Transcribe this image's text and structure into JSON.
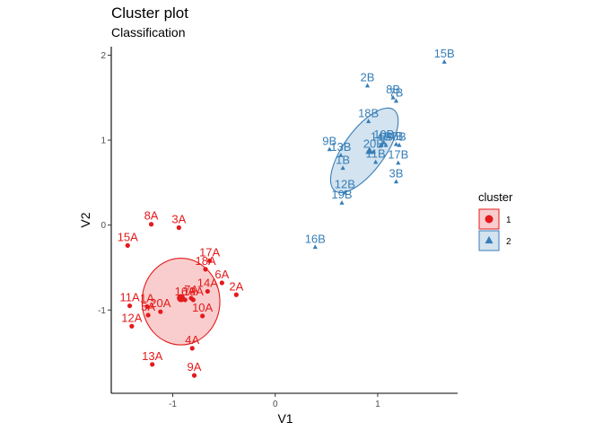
{
  "chart_data": {
    "type": "scatter",
    "title": "Cluster plot",
    "subtitle": "Classification",
    "xlabel": "V1",
    "ylabel": "V2",
    "xlim": [
      -1.6,
      1.78
    ],
    "ylim": [
      -1.98,
      2.1
    ],
    "x_ticks": [
      -1,
      0,
      1
    ],
    "y_ticks": [
      -1,
      0,
      1,
      2
    ],
    "grid": false,
    "legend": {
      "title": "cluster",
      "position": "right"
    },
    "series": [
      {
        "name": "1",
        "color": "#e41a1c",
        "marker": "circle",
        "ellipse": {
          "cx": -0.92,
          "cy": -0.9,
          "rx": 0.38,
          "ry": 0.51,
          "rotation_deg": 0
        },
        "centroid": [
          -0.92,
          -0.86
        ],
        "points": [
          {
            "label": "1A",
            "x": -1.25,
            "y": -0.96
          },
          {
            "label": "2A",
            "x": -0.38,
            "y": -0.82
          },
          {
            "label": "3A",
            "x": -0.94,
            "y": -0.03
          },
          {
            "label": "4A",
            "x": -0.81,
            "y": -1.45
          },
          {
            "label": "5A",
            "x": -1.24,
            "y": -1.06
          },
          {
            "label": "6A",
            "x": -0.52,
            "y": -0.68
          },
          {
            "label": "7A",
            "x": -0.82,
            "y": -0.86
          },
          {
            "label": "8A",
            "x": -1.21,
            "y": 0.01
          },
          {
            "label": "9A",
            "x": -0.79,
            "y": -1.77
          },
          {
            "label": "10A",
            "x": -0.71,
            "y": -1.07
          },
          {
            "label": "11A",
            "x": -1.42,
            "y": -0.95
          },
          {
            "label": "12A",
            "x": -1.4,
            "y": -1.19
          },
          {
            "label": "13A",
            "x": -1.2,
            "y": -1.64
          },
          {
            "label": "14A",
            "x": -0.66,
            "y": -0.78
          },
          {
            "label": "15A",
            "x": -1.44,
            "y": -0.24
          },
          {
            "label": "16A",
            "x": -0.88,
            "y": -0.88
          },
          {
            "label": "17A",
            "x": -0.64,
            "y": -0.42
          },
          {
            "label": "18A",
            "x": -0.68,
            "y": -0.52
          },
          {
            "label": "19A",
            "x": -0.8,
            "y": -0.88
          },
          {
            "label": "20A",
            "x": -1.12,
            "y": -1.02
          }
        ]
      },
      {
        "name": "2",
        "color": "#377eb8",
        "marker": "triangle",
        "ellipse": {
          "cx": 0.87,
          "cy": 0.88,
          "rx": 0.2,
          "ry": 0.59,
          "rotation_deg": 36
        },
        "centroid": [
          0.92,
          0.87
        ],
        "points": [
          {
            "label": "1B",
            "x": 0.66,
            "y": 0.67
          },
          {
            "label": "2B",
            "x": 0.9,
            "y": 1.64
          },
          {
            "label": "3B",
            "x": 1.18,
            "y": 0.51
          },
          {
            "label": "4B",
            "x": 1.18,
            "y": 0.95
          },
          {
            "label": "5B",
            "x": 1.21,
            "y": 0.94
          },
          {
            "label": "6B",
            "x": 1.08,
            "y": 0.94
          },
          {
            "label": "7B",
            "x": 1.18,
            "y": 1.46
          },
          {
            "label": "8B",
            "x": 1.15,
            "y": 1.5
          },
          {
            "label": "9B",
            "x": 0.53,
            "y": 0.89
          },
          {
            "label": "10B",
            "x": 1.06,
            "y": 0.97
          },
          {
            "label": "11B",
            "x": 0.98,
            "y": 0.74
          },
          {
            "label": "12B",
            "x": 0.68,
            "y": 0.38
          },
          {
            "label": "13B",
            "x": 0.64,
            "y": 0.82
          },
          {
            "label": "14B",
            "x": 1.03,
            "y": 0.94
          },
          {
            "label": "15B",
            "x": 1.65,
            "y": 1.92
          },
          {
            "label": "16B",
            "x": 0.39,
            "y": -0.26
          },
          {
            "label": "17B",
            "x": 1.2,
            "y": 0.73
          },
          {
            "label": "18B",
            "x": 0.91,
            "y": 1.22
          },
          {
            "label": "19B",
            "x": 0.65,
            "y": 0.26
          },
          {
            "label": "20B",
            "x": 0.96,
            "y": 0.86
          }
        ]
      }
    ]
  }
}
